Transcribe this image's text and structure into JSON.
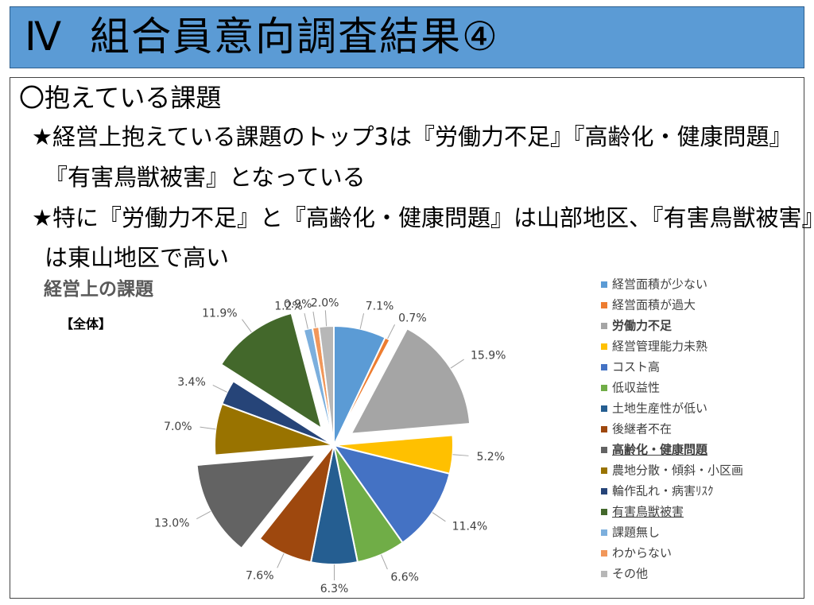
{
  "slide": {
    "title_num": "Ⅳ",
    "title": "組合員意向調査結果④",
    "heading": "〇抱えている課題",
    "bullet1_line1": "★経営上抱えている課題のトップ3は『労働力不足』『高齢化・健康問題』",
    "bullet1_line2": "『有害鳥獣被害』となっている",
    "bullet2_line1": "★特に『労働力不足』と『高齢化・健康問題』は山部地区、『有害鳥獣被害』",
    "bullet2_line2": "は東山地区で高い"
  },
  "chart_data": {
    "type": "pie",
    "title": "経営上の課題",
    "subtitle": "【全体】",
    "legend_position": "right",
    "slices": [
      {
        "label": "経営面積が少ない",
        "value": 7.1,
        "display": "7.1%",
        "color": "#5b9bd5",
        "exploded": false,
        "style": "normal"
      },
      {
        "label": "経営面積が過大",
        "value": 0.7,
        "display": "0.7%",
        "color": "#ed7d31",
        "exploded": false,
        "style": "normal"
      },
      {
        "label": "労働力不足",
        "value": 15.9,
        "display": "15.9%",
        "color": "#a5a5a5",
        "exploded": true,
        "style": "semibold"
      },
      {
        "label": "経営管理能力未熟",
        "value": 5.2,
        "display": "5.2%",
        "color": "#ffc000",
        "exploded": false,
        "style": "normal"
      },
      {
        "label": "コスト高",
        "value": 11.4,
        "display": "11.4%",
        "color": "#4472c4",
        "exploded": false,
        "style": "normal"
      },
      {
        "label": "低収益性",
        "value": 6.6,
        "display": "6.6%",
        "color": "#70ad47",
        "exploded": false,
        "style": "normal"
      },
      {
        "label": "土地生産性が低い",
        "value": 6.3,
        "display": "6.3%",
        "color": "#255e91",
        "exploded": false,
        "style": "normal"
      },
      {
        "label": "後継者不在",
        "value": 7.6,
        "display": "7.6%",
        "color": "#9e480e",
        "exploded": false,
        "style": "normal"
      },
      {
        "label": "高齢化・健康問題",
        "value": 13.0,
        "display": "13.0%",
        "color": "#636363",
        "exploded": true,
        "style": "bold"
      },
      {
        "label": "農地分散・傾斜・小区画",
        "value": 7.0,
        "display": "7.0%",
        "color": "#997300",
        "exploded": false,
        "style": "normal"
      },
      {
        "label": "輪作乱れ・病害ﾘｽｸ",
        "value": 3.4,
        "display": "3.4%",
        "color": "#264478",
        "exploded": false,
        "style": "normal"
      },
      {
        "label": "有害鳥獣被害",
        "value": 11.9,
        "display": "11.9%",
        "color": "#43682b",
        "exploded": true,
        "style": "underline"
      },
      {
        "label": "課題無し",
        "value": 1.2,
        "display": "1.2%",
        "color": "#7cafdd",
        "exploded": false,
        "style": "normal"
      },
      {
        "label": "わからない",
        "value": 0.9,
        "display": "0.9%",
        "color": "#f1975a",
        "exploded": false,
        "style": "normal"
      },
      {
        "label": "その他",
        "value": 2.0,
        "display": "2.0%",
        "color": "#b7b7b7",
        "exploded": false,
        "style": "normal"
      }
    ]
  }
}
